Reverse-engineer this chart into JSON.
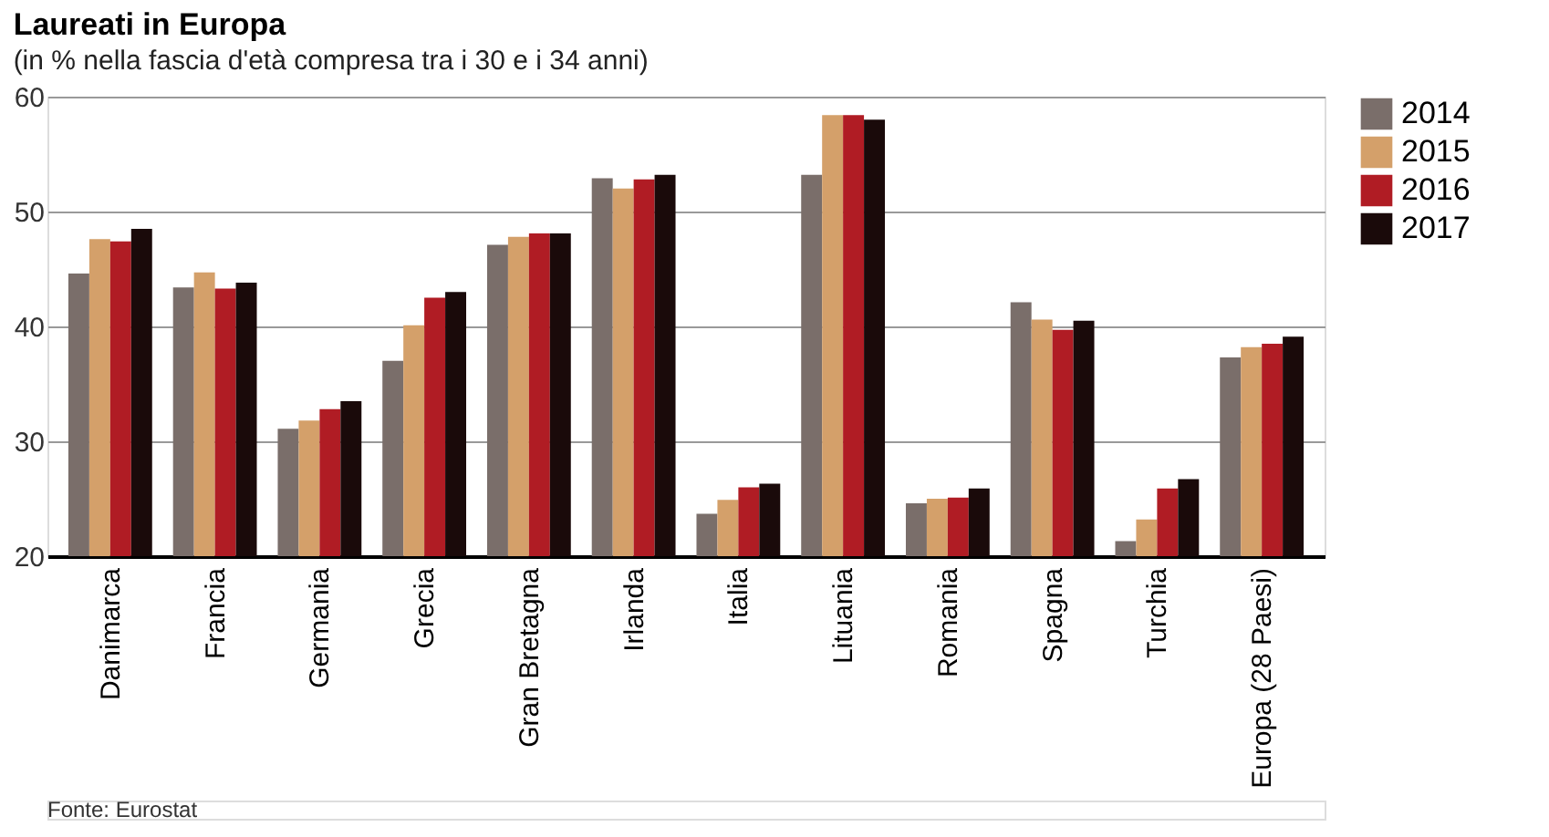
{
  "chart_data": {
    "type": "bar",
    "title": "Laureati in Europa",
    "subtitle": "(in % nella fascia d'età compresa tra i 30 e i 34 anni)",
    "categories": [
      "Danimarca",
      "Francia",
      "Germania",
      "Grecia",
      "Gran Bretagna",
      "Irlanda",
      "Italia",
      "Lituania",
      "Romania",
      "Spagna",
      "Turchia",
      "Europa (28 Paesi)"
    ],
    "series": [
      {
        "name": "2014",
        "color": "#7a6e6a",
        "values": [
          44.6,
          43.4,
          31.1,
          37.0,
          47.1,
          52.9,
          23.7,
          53.2,
          24.6,
          42.1,
          21.3,
          37.3
        ]
      },
      {
        "name": "2015",
        "color": "#d4a06a",
        "values": [
          47.6,
          44.7,
          31.8,
          40.1,
          47.8,
          52.0,
          24.9,
          58.4,
          25.0,
          40.6,
          23.2,
          38.2
        ]
      },
      {
        "name": "2016",
        "color": "#b01c24",
        "values": [
          47.4,
          43.3,
          32.8,
          42.5,
          48.1,
          52.8,
          26.0,
          58.4,
          25.1,
          39.7,
          25.9,
          38.5
        ]
      },
      {
        "name": "2017",
        "color": "#1a0a0a",
        "values": [
          48.5,
          43.8,
          33.5,
          43.0,
          48.1,
          53.2,
          26.3,
          58.0,
          25.9,
          40.5,
          26.7,
          39.1
        ]
      }
    ],
    "ylim": [
      20,
      60
    ],
    "yticks": [
      20,
      30,
      40,
      50,
      60
    ],
    "grid": "y",
    "legend": "top right",
    "annotations": [
      "Fonte: Eurostat"
    ]
  }
}
